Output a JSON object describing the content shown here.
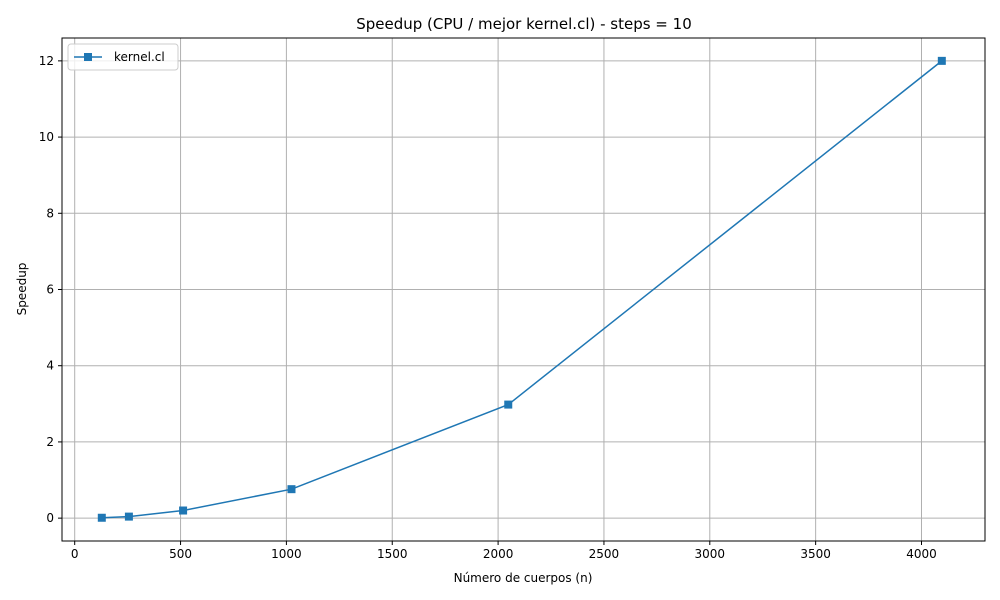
{
  "chart_data": {
    "type": "line",
    "title": "Speedup (CPU / mejor kernel.cl) - steps = 10",
    "xlabel": "Número de cuerpos (n)",
    "ylabel": "Speedup",
    "xlim": [
      -60,
      4300
    ],
    "ylim": [
      -0.6,
      12.6
    ],
    "xticks": [
      0,
      500,
      1000,
      1500,
      2000,
      2500,
      3000,
      3500,
      4000
    ],
    "yticks": [
      0,
      2,
      4,
      6,
      8,
      10,
      12
    ],
    "grid": true,
    "legend_position": "top-left",
    "series": [
      {
        "name": "kernel.cl",
        "color": "#1f77b4",
        "marker": "square",
        "x": [
          128,
          256,
          512,
          1024,
          2048,
          4096
        ],
        "y": [
          0.01,
          0.04,
          0.2,
          0.76,
          2.98,
          12.0
        ]
      }
    ]
  }
}
